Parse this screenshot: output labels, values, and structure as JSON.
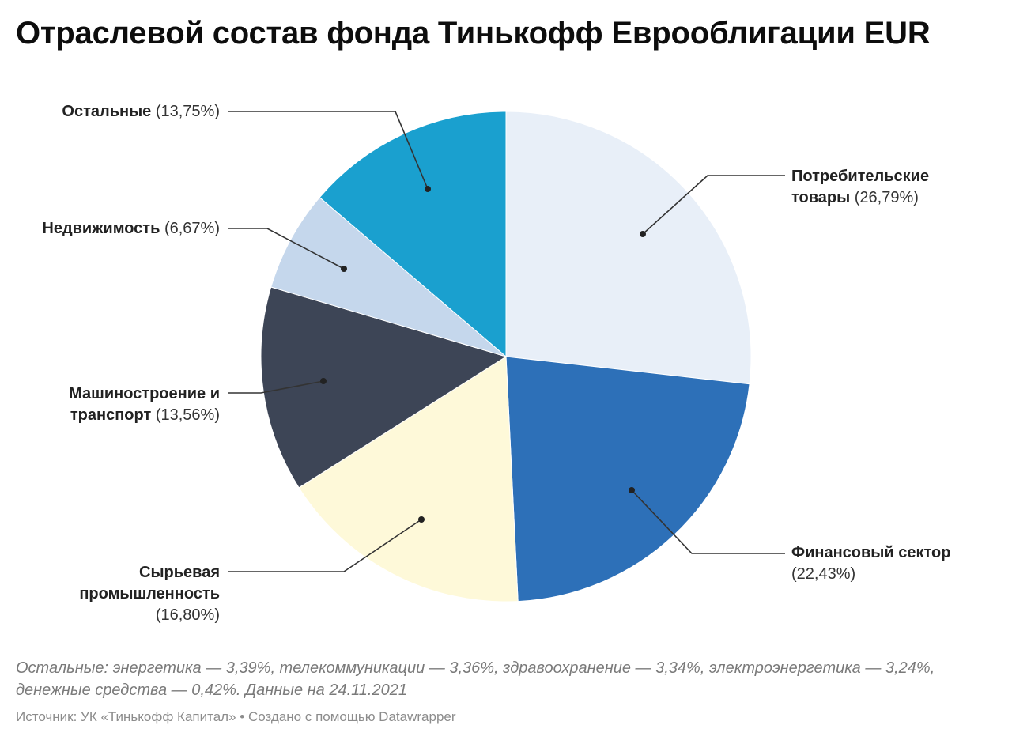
{
  "chart_data": {
    "type": "pie",
    "title": "Отраслевой состав фонда Тинькофф Еврооблигации EUR",
    "slices": [
      {
        "name": "Потребительские товары",
        "line1": "Потребительские",
        "line2": "товары",
        "value": 26.79,
        "label_value": "(26,79%)",
        "color": "#e8eff8"
      },
      {
        "name": "Финансовый сектор",
        "line1": "Финансовый сектор",
        "line2": "",
        "value": 22.43,
        "label_value": "(22,43%)",
        "color": "#2d70b8"
      },
      {
        "name": "Сырьевая промышленность",
        "line1": "Сырьевая",
        "line2": "промышленность",
        "value": 16.8,
        "label_value": "(16,80%)",
        "color": "#fef9d9"
      },
      {
        "name": "Машиностроение и транспорт",
        "line1": "Машиностроение и",
        "line2": "транспорт",
        "value": 13.56,
        "label_value": "(13,56%)",
        "color": "#3d4556"
      },
      {
        "name": "Недвижимость",
        "line1": "Недвижимость",
        "line2": "",
        "value": 6.67,
        "label_value": "(6,67%)",
        "color": "#c5d7ec"
      },
      {
        "name": "Остальные",
        "line1": "Остальные",
        "line2": "",
        "value": 13.75,
        "label_value": "(13,75%)",
        "color": "#1aa0cf"
      }
    ],
    "start_angle_deg": 0,
    "direction": "clockwise"
  },
  "notes": {
    "text": "Остальные: энергетика — 3,39%, телекоммуникации — 3,36%, здравоохранение — 3,34%, электроэнергетика — 3,24%, денежные средства — 0,42%. Данные на 24.11.2021"
  },
  "footer": {
    "text": "Источник: УК «Тинькофф Капитал» • Создано с помощью Datawrapper"
  }
}
